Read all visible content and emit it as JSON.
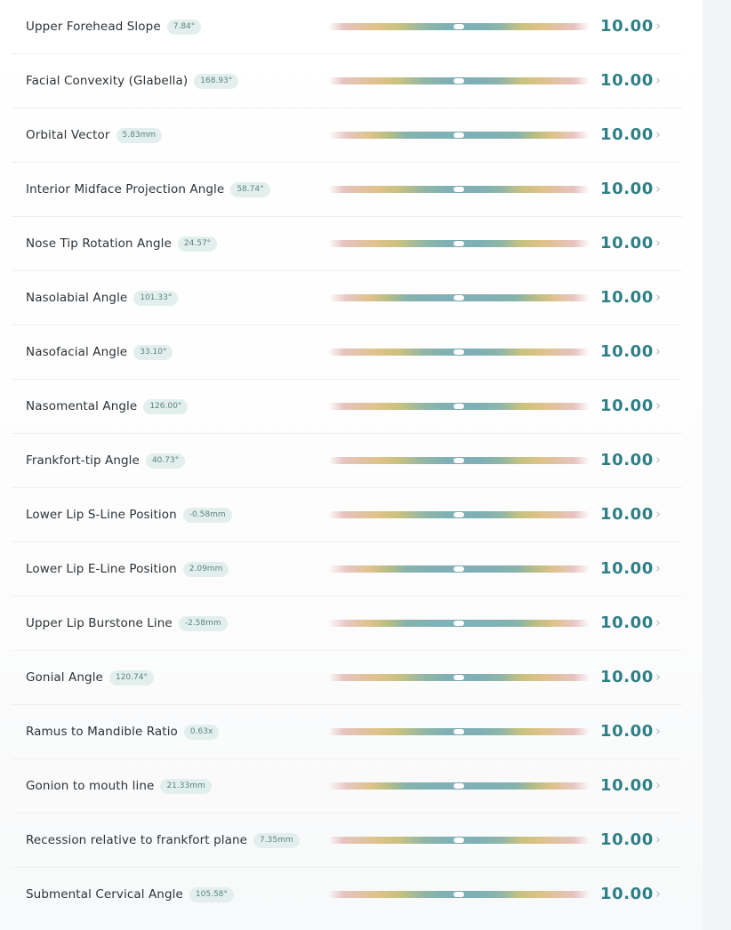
{
  "rows": [
    {
      "label": "Upper Forehead Slope",
      "badge": "7.84°",
      "score": "10.00",
      "variant": "g1"
    },
    {
      "label": "Facial Convexity (Glabella)",
      "badge": "168.93°",
      "score": "10.00",
      "variant": "g1"
    },
    {
      "label": "Orbital Vector",
      "badge": "5.83mm",
      "score": "10.00",
      "variant": "g2"
    },
    {
      "label": "Interior Midface Projection Angle",
      "badge": "58.74°",
      "score": "10.00",
      "variant": "g1"
    },
    {
      "label": "Nose Tip Rotation Angle",
      "badge": "24.57°",
      "score": "10.00",
      "variant": "g1"
    },
    {
      "label": "Nasolabial Angle",
      "badge": "101.33°",
      "score": "10.00",
      "variant": "g2"
    },
    {
      "label": "Nasofacial Angle",
      "badge": "33.10°",
      "score": "10.00",
      "variant": "g1"
    },
    {
      "label": "Nasomental Angle",
      "badge": "126.00°",
      "score": "10.00",
      "variant": "g1"
    },
    {
      "label": "Frankfort-tip Angle",
      "badge": "40.73°",
      "score": "10.00",
      "variant": "g1"
    },
    {
      "label": "Lower Lip S-Line Position",
      "badge": "-0.58mm",
      "score": "10.00",
      "variant": "g1"
    },
    {
      "label": "Lower Lip E-Line Position",
      "badge": "2.09mm",
      "score": "10.00",
      "variant": "g2"
    },
    {
      "label": "Upper Lip Burstone Line",
      "badge": "-2.58mm",
      "score": "10.00",
      "variant": "g2"
    },
    {
      "label": "Gonial Angle",
      "badge": "120.74°",
      "score": "10.00",
      "variant": "g1"
    },
    {
      "label": "Ramus to Mandible Ratio",
      "badge": "0.63x",
      "score": "10.00",
      "variant": "g1"
    },
    {
      "label": "Gonion to mouth line",
      "badge": "21.33mm",
      "score": "10.00",
      "variant": "g2"
    },
    {
      "label": "Recession relative to frankfort plane",
      "badge": "7.35mm",
      "score": "10.00",
      "variant": "g1"
    },
    {
      "label": "Submental Cervical Angle",
      "badge": "105.58°",
      "score": "10.00",
      "variant": "g1"
    }
  ],
  "chevron_icon": "chevron-right-icon",
  "colors": {
    "score": "#2f7f86",
    "badge_bg": "#e3efed",
    "badge_text": "#5b8580",
    "bar_center": "#7eb0b5",
    "bar_mid": "#dfc28a",
    "bar_edge": "#e6c3c0"
  }
}
